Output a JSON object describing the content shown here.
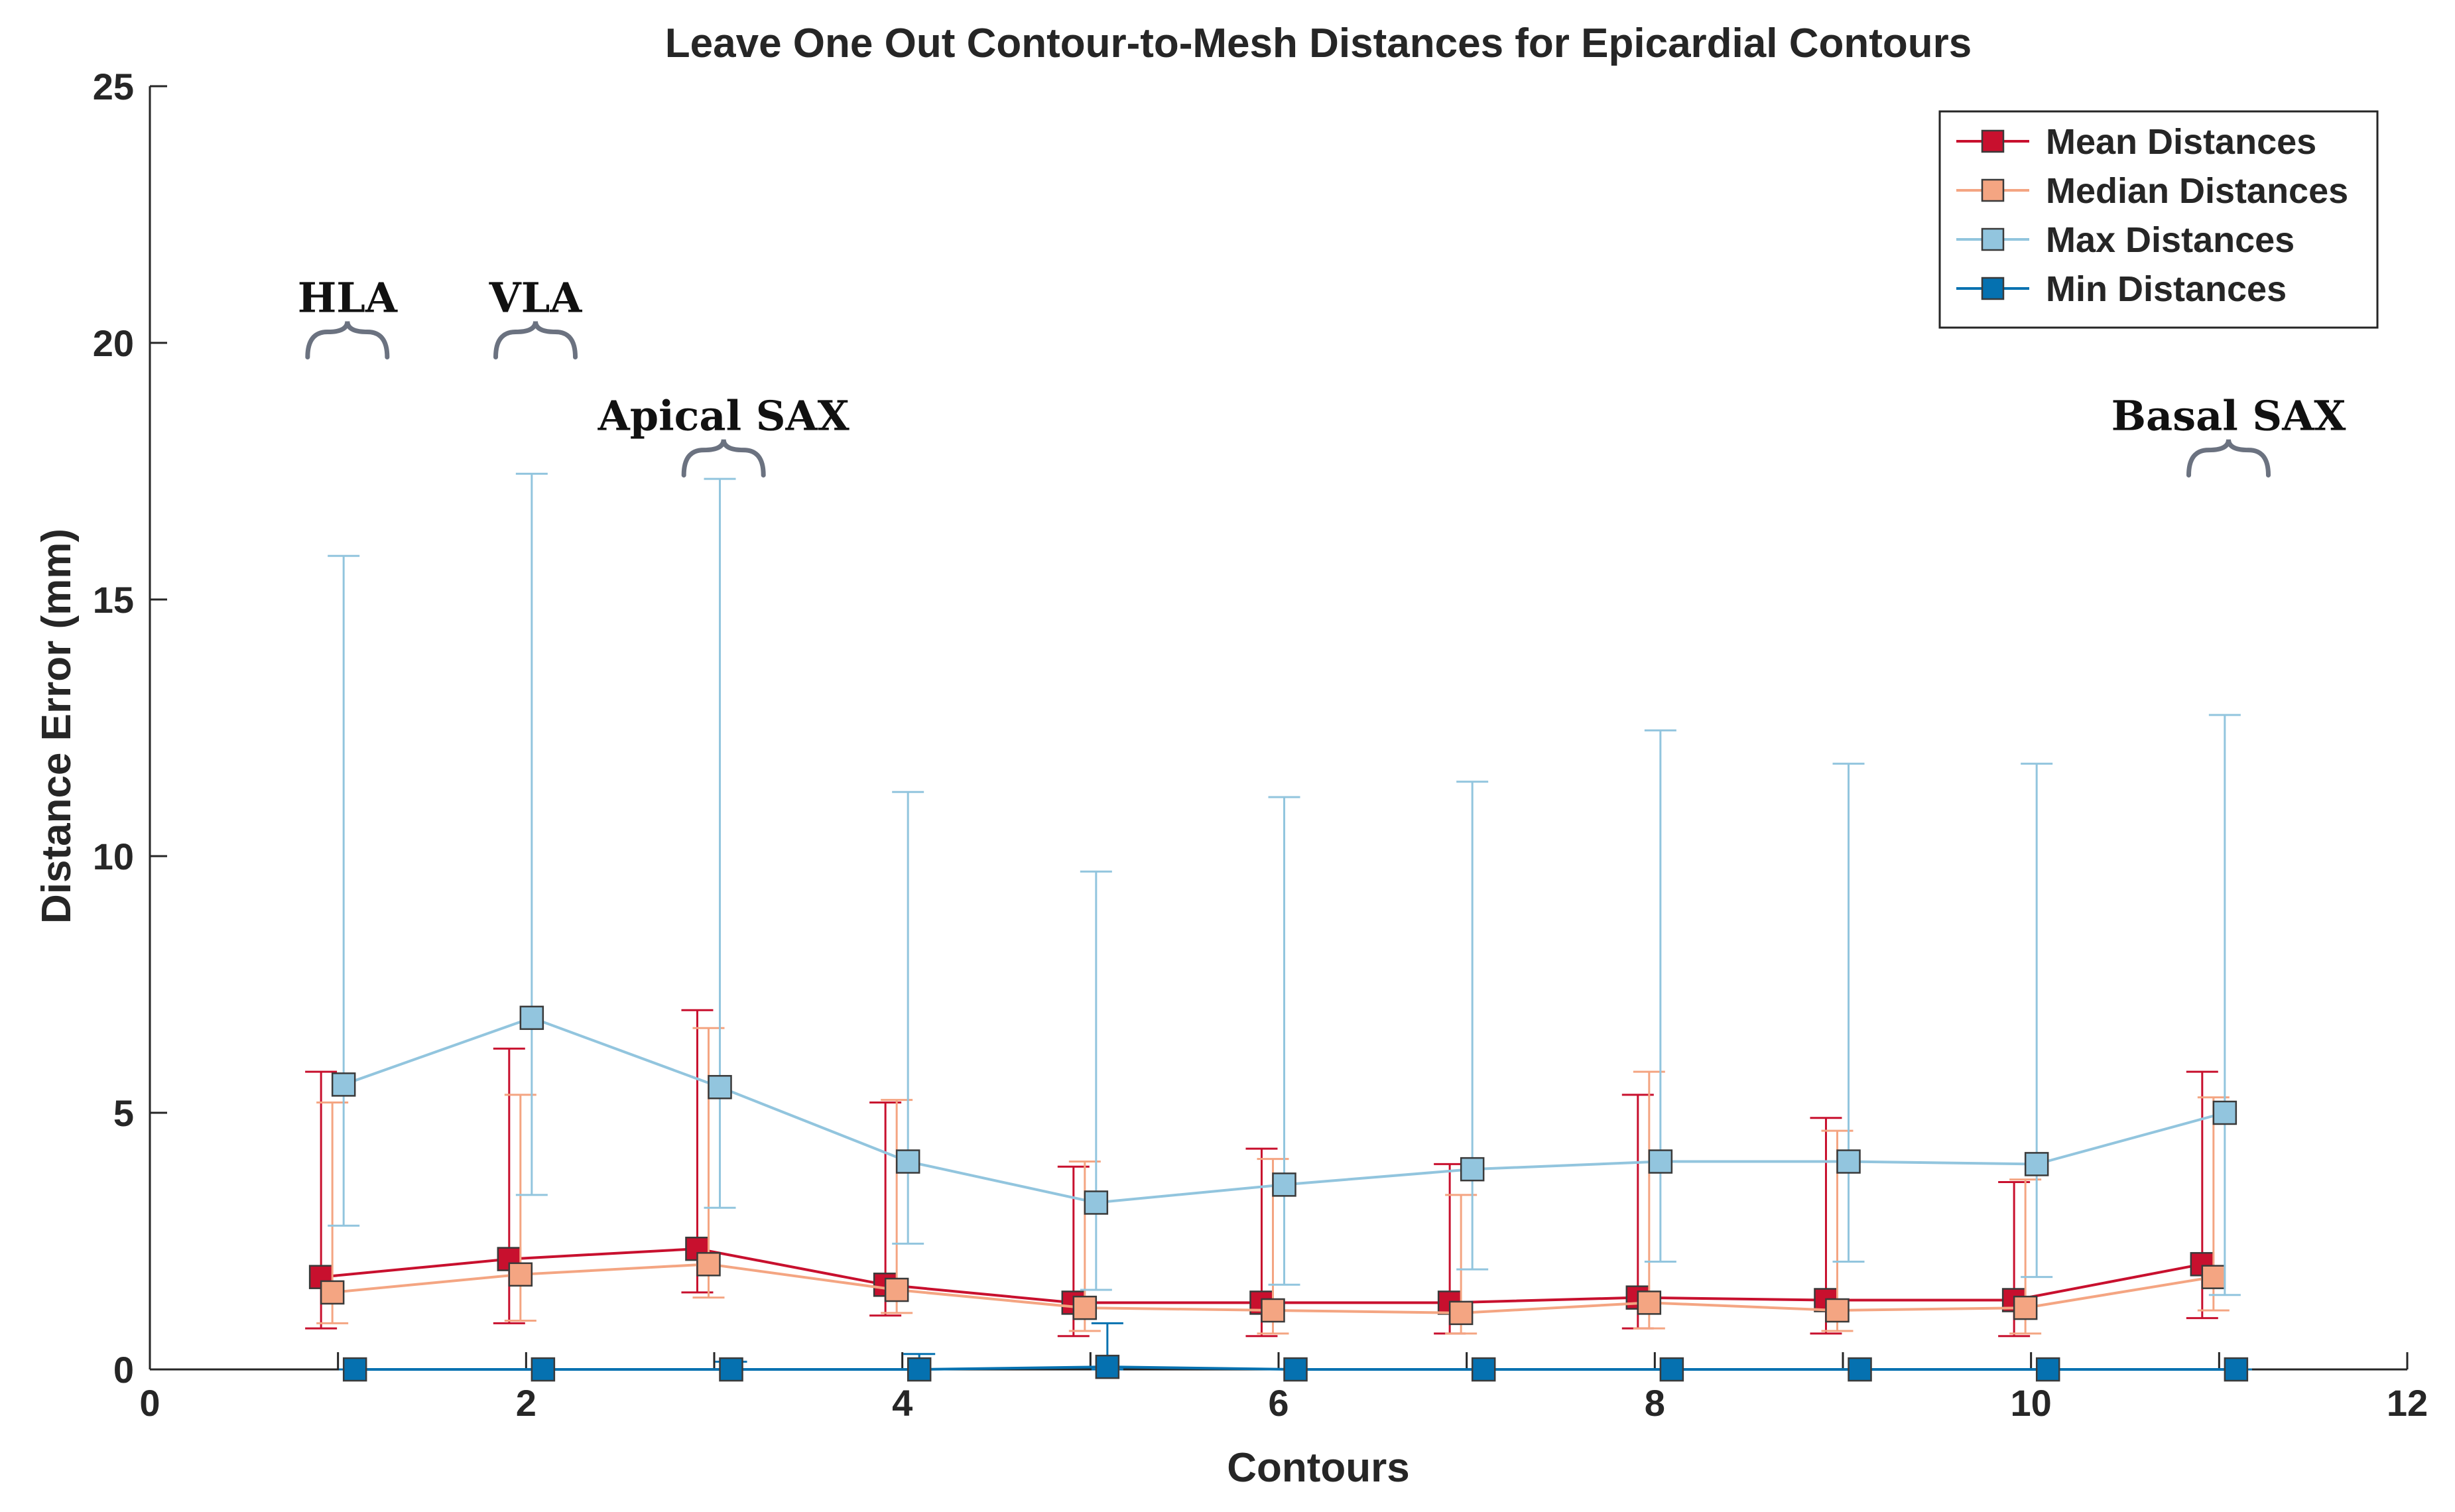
{
  "chart_data": {
    "type": "line",
    "title": "Leave One Out Contour-to-Mesh Distances for Epicardial Contours",
    "xlabel": "Contours",
    "ylabel": "Distance Error (mm)",
    "xlim": [
      0,
      12
    ],
    "ylim": [
      0,
      25
    ],
    "xticks": [
      0,
      2,
      4,
      6,
      8,
      10,
      12
    ],
    "yticks": [
      0,
      5,
      10,
      15,
      20,
      25
    ],
    "grid": false,
    "legend_position": "top-right",
    "x": [
      1,
      2,
      3,
      4,
      5,
      6,
      7,
      8,
      9,
      10,
      11
    ],
    "series": [
      {
        "name": "Mean Distances",
        "color": "#c8102e",
        "x_offset": -0.09,
        "values": [
          1.8,
          2.15,
          2.35,
          1.65,
          1.3,
          1.3,
          1.3,
          1.4,
          1.35,
          1.35,
          2.05
        ],
        "err_low": [
          0.8,
          0.9,
          1.5,
          1.05,
          0.65,
          0.65,
          0.7,
          0.8,
          0.7,
          0.65,
          1.0
        ],
        "err_high": [
          5.8,
          6.25,
          7.0,
          5.2,
          3.95,
          4.3,
          4.0,
          5.35,
          4.9,
          3.65,
          5.8
        ]
      },
      {
        "name": "Median Distances",
        "color": "#f4a582",
        "x_offset": -0.03,
        "values": [
          1.5,
          1.85,
          2.05,
          1.55,
          1.2,
          1.15,
          1.1,
          1.3,
          1.15,
          1.2,
          1.8
        ],
        "err_low": [
          0.9,
          0.95,
          1.4,
          1.1,
          0.75,
          0.7,
          0.7,
          0.8,
          0.75,
          0.7,
          1.15
        ],
        "err_high": [
          5.2,
          5.35,
          6.65,
          5.25,
          4.05,
          4.1,
          3.4,
          5.8,
          4.65,
          3.7,
          5.3
        ]
      },
      {
        "name": "Max Distances",
        "color": "#92c5de",
        "x_offset": 0.03,
        "values": [
          5.55,
          6.85,
          5.5,
          4.05,
          3.25,
          3.6,
          3.9,
          4.05,
          4.05,
          4.0,
          5.0
        ],
        "err_low": [
          2.8,
          3.4,
          3.15,
          2.45,
          1.55,
          1.65,
          1.95,
          2.1,
          2.1,
          1.8,
          1.45
        ],
        "err_high": [
          15.85,
          17.45,
          17.35,
          11.25,
          9.7,
          11.15,
          11.45,
          12.45,
          11.8,
          11.8,
          12.75
        ]
      },
      {
        "name": "Min Distances",
        "color": "#0571b0",
        "x_offset": 0.09,
        "values": [
          0.0,
          0.0,
          0.0,
          0.0,
          0.05,
          0.0,
          0.0,
          0.0,
          0.0,
          0.0,
          0.0
        ],
        "err_low": [
          0.0,
          0.0,
          0.0,
          0.0,
          0.0,
          0.0,
          0.0,
          0.0,
          0.0,
          0.0,
          0.0
        ],
        "err_high": [
          0.0,
          0.0,
          0.15,
          0.3,
          0.9,
          0.0,
          0.0,
          0.0,
          0.0,
          0.0,
          0.0
        ]
      }
    ],
    "annotations": [
      {
        "text": "HLA",
        "x": 1.05,
        "y": 20.6
      },
      {
        "text": "VLA",
        "x": 2.05,
        "y": 20.6
      },
      {
        "text": "Apical SAX",
        "x": 3.05,
        "y": 18.3
      },
      {
        "text": "Basal SAX",
        "x": 11.05,
        "y": 18.3
      }
    ]
  }
}
